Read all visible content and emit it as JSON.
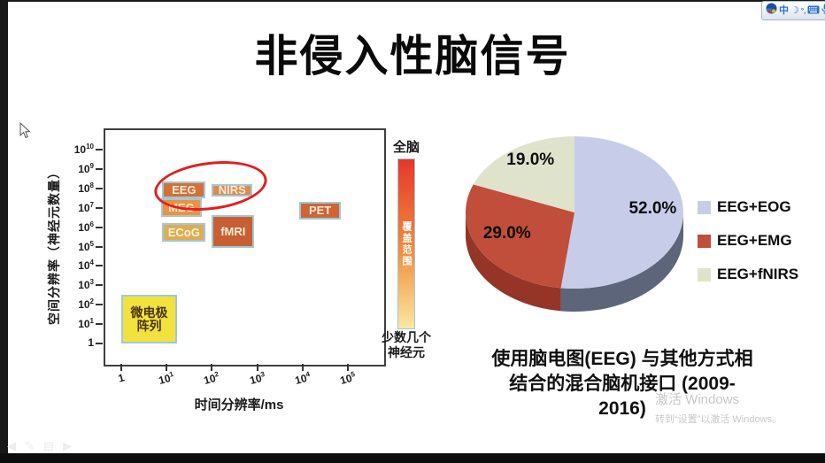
{
  "window": {
    "ime_toolbar": {
      "icons": [
        {
          "name": "sogou-logo"
        },
        {
          "name": "chinese-mode",
          "glyph": "中"
        },
        {
          "name": "fullwidth-moon"
        },
        {
          "name": "punctuation",
          "glyph": "°,"
        },
        {
          "name": "soft-keyboard"
        },
        {
          "name": "voice-input"
        },
        {
          "name": "settings-gear"
        }
      ]
    },
    "nav_controls": {
      "prev": "◀",
      "pen": "✎",
      "menu": "▤",
      "next": "▶"
    },
    "watermark": {
      "line1": "激活 Windows",
      "line2": "转到“设置”以激活 Windows。"
    }
  },
  "slide": {
    "title": "非侵入性脑信号",
    "caption_lines": [
      "使用脑电图(EEG) 与其他方式相",
      "结合的混合脑机接口 (2009-",
      "2016)"
    ]
  },
  "chart_data": [
    {
      "type": "scatter",
      "title": "",
      "xlabel": "时间分辨率/ms",
      "ylabel": "空间分辨率（神经元数量）",
      "x_ticks": [
        "1",
        "10^1",
        "10^2",
        "10^3",
        "10^4",
        "10^5"
      ],
      "y_ticks": [
        "10^10",
        "10^9",
        "10^8",
        "10^7",
        "10^6",
        "10^5",
        "10^4",
        "10^3",
        "10^2",
        "10^1",
        "1"
      ],
      "xlim_ms": [
        1,
        100000
      ],
      "ylim_neurons": [
        1,
        10000000000.0
      ],
      "grid": false,
      "box_border_color": "#9fc8d9",
      "items": [
        {
          "id": "eeg",
          "label": "EEG",
          "x_range_ms": [
            8,
            73
          ],
          "y_range": [
            32000000.0,
            220000000.0
          ],
          "fill": "#d46f38",
          "text_color": "#f7ecd9",
          "circled": true
        },
        {
          "id": "nirs",
          "label": "NIRS",
          "x_range_ms": [
            100,
            780
          ],
          "y_range": [
            40000000.0,
            160000000.0
          ],
          "fill": "#dd8a4c",
          "text_color": "#f7ecd9",
          "circled": true
        },
        {
          "id": "meg",
          "label": "MEG",
          "x_range_ms": [
            7.5,
            60
          ],
          "y_range": [
            3500000.0,
            30000000.0
          ],
          "fill": "#ec9240",
          "text_color": "#f7ecd9",
          "circled": false
        },
        {
          "id": "ecog",
          "label": "ECoG",
          "x_range_ms": [
            8,
            73
          ],
          "y_range": [
            180000.0,
            1600000.0
          ],
          "fill": "#dcad52",
          "text_color": "#f8f1dd",
          "circled": false
        },
        {
          "id": "fmri",
          "label": "fMRI",
          "x_range_ms": [
            100,
            860
          ],
          "y_range": [
            85000.0,
            4200000.0
          ],
          "fill": "#c75f33",
          "text_color": "#f7ecd9",
          "circled": false
        },
        {
          "id": "pet",
          "label": "PET",
          "x_range_ms": [
            8500,
            70000
          ],
          "y_range": [
            2500000.0,
            20000000.0
          ],
          "fill": "#d06434",
          "text_color": "#f7ecd9",
          "circled": false
        },
        {
          "id": "microelectrode-array",
          "label": "微电极阵列",
          "label_lines": [
            "微电极",
            "阵列"
          ],
          "x_range_ms": [
            1,
            17
          ],
          "y_range": [
            1,
            320
          ],
          "fill": "#f3e13d",
          "text_color": "#463413",
          "circled": false
        }
      ],
      "annotation": {
        "type": "ellipse",
        "color": "#e21f1f",
        "around": [
          "EEG",
          "NIRS"
        ]
      },
      "colorbar": {
        "top_label": "全脑",
        "bar_text": "覆盖范围",
        "bottom_label_lines": [
          "少数几个",
          "神经元"
        ],
        "gradient": [
          "#e6372b",
          "#f0903e",
          "#fae8a2"
        ]
      }
    },
    {
      "type": "pie",
      "effect": "3d",
      "labels": [
        "EEG+EOG",
        "EEG+EMG",
        "EEG+fNIRS"
      ],
      "values": [
        52.0,
        29.0,
        19.0
      ],
      "value_labels": [
        "52.0%",
        "29.0%",
        "19.0%"
      ],
      "colors": [
        "#c7cde9",
        "#c14e3a",
        "#dfe3cc"
      ],
      "side_colors": [
        "#5c6579",
        "#943527",
        "#a9ad99"
      ],
      "legend_position": "right"
    }
  ]
}
